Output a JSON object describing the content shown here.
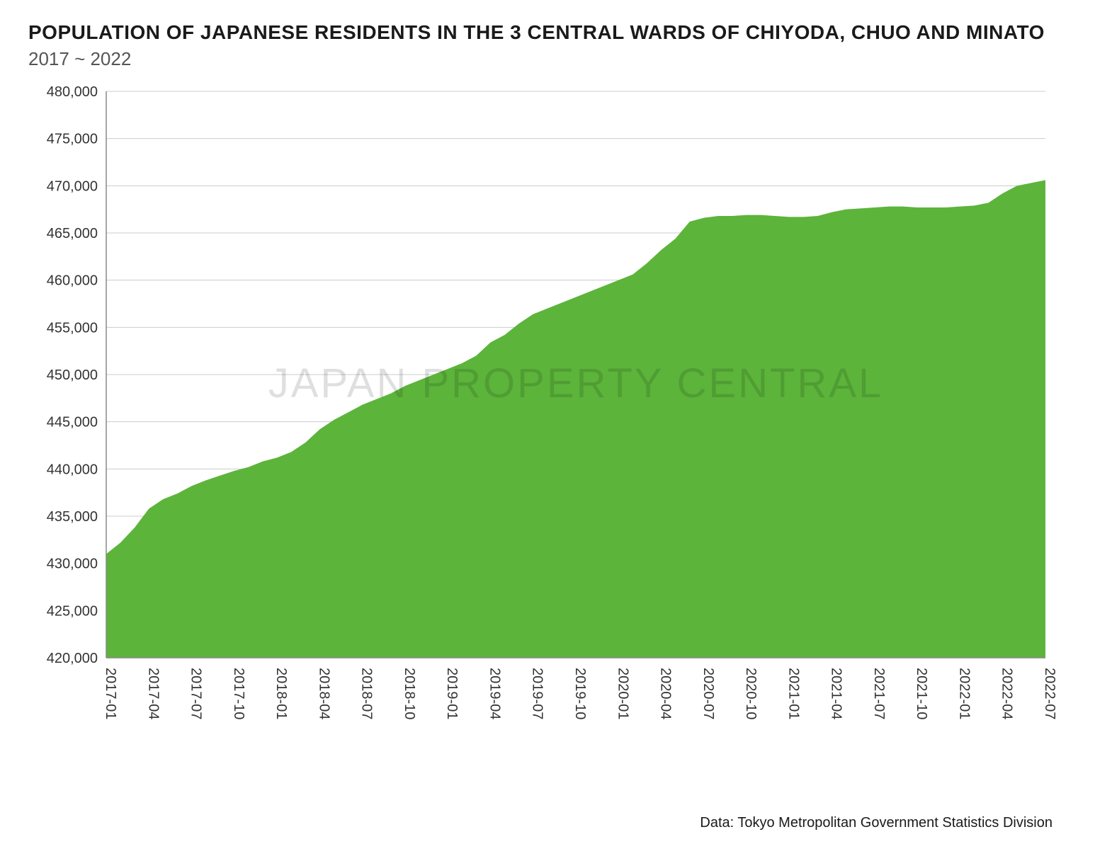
{
  "header": {
    "title": "POPULATION OF JAPANESE RESIDENTS IN THE 3 CENTRAL WARDS OF CHIYODA, CHUO AND MINATO",
    "subtitle": "2017 ~ 2022"
  },
  "chart": {
    "type": "area",
    "watermark": "JAPAN PROPERTY CENTRAL",
    "background_color": "#ffffff",
    "grid_color": "#cccccc",
    "axis_color": "#888888",
    "fill_color": "#5cb43b",
    "title_fontsize": 28,
    "subtitle_fontsize": 26,
    "axis_label_fontsize": 20,
    "watermark_fontsize": 58,
    "watermark_opacity": 0.12,
    "ylim": [
      420000,
      480000
    ],
    "ytick_step": 5000,
    "yticks": [
      {
        "value": 420000,
        "label": "420,000"
      },
      {
        "value": 425000,
        "label": "425,000"
      },
      {
        "value": 430000,
        "label": "430,000"
      },
      {
        "value": 435000,
        "label": "435,000"
      },
      {
        "value": 440000,
        "label": "440,000"
      },
      {
        "value": 445000,
        "label": "445,000"
      },
      {
        "value": 450000,
        "label": "450,000"
      },
      {
        "value": 455000,
        "label": "455,000"
      },
      {
        "value": 460000,
        "label": "460,000"
      },
      {
        "value": 465000,
        "label": "465,000"
      },
      {
        "value": 470000,
        "label": "470,000"
      },
      {
        "value": 475000,
        "label": "475,000"
      },
      {
        "value": 480000,
        "label": "480,000"
      }
    ],
    "xticks": [
      "2017-01",
      "2017-04",
      "2017-07",
      "2017-10",
      "2018-01",
      "2018-04",
      "2018-07",
      "2018-10",
      "2019-01",
      "2019-04",
      "2019-07",
      "2019-10",
      "2020-01",
      "2020-04",
      "2020-07",
      "2020-10",
      "2021-01",
      "2021-04",
      "2021-07",
      "2021-10",
      "2022-01",
      "2022-04",
      "2022-07"
    ],
    "xtick_step_months": 3,
    "series": {
      "x": [
        "2017-01",
        "2017-02",
        "2017-03",
        "2017-04",
        "2017-05",
        "2017-06",
        "2017-07",
        "2017-08",
        "2017-09",
        "2017-10",
        "2017-11",
        "2017-12",
        "2018-01",
        "2018-02",
        "2018-03",
        "2018-04",
        "2018-05",
        "2018-06",
        "2018-07",
        "2018-08",
        "2018-09",
        "2018-10",
        "2018-11",
        "2018-12",
        "2019-01",
        "2019-02",
        "2019-03",
        "2019-04",
        "2019-05",
        "2019-06",
        "2019-07",
        "2019-08",
        "2019-09",
        "2019-10",
        "2019-11",
        "2019-12",
        "2020-01",
        "2020-02",
        "2020-03",
        "2020-04",
        "2020-05",
        "2020-06",
        "2020-07",
        "2020-08",
        "2020-09",
        "2020-10",
        "2020-11",
        "2020-12",
        "2021-01",
        "2021-02",
        "2021-03",
        "2021-04",
        "2021-05",
        "2021-06",
        "2021-07",
        "2021-08",
        "2021-09",
        "2021-10",
        "2021-11",
        "2021-12",
        "2022-01",
        "2022-02",
        "2022-03",
        "2022-04",
        "2022-05",
        "2022-06",
        "2022-07"
      ],
      "y": [
        431000,
        432200,
        433800,
        435800,
        436800,
        437400,
        438200,
        438800,
        439300,
        439800,
        440200,
        440800,
        441200,
        441800,
        442800,
        444200,
        445200,
        446000,
        446800,
        447400,
        448000,
        448800,
        449400,
        450000,
        450600,
        451200,
        452000,
        453400,
        454200,
        455400,
        456400,
        457000,
        457600,
        458200,
        458800,
        459400,
        460000,
        460600,
        461800,
        463200,
        464400,
        466200,
        466600,
        466800,
        466800,
        466900,
        466900,
        466800,
        466700,
        466700,
        466800,
        467200,
        467500,
        467600,
        467700,
        467800,
        467800,
        467700,
        467700,
        467700,
        467800,
        467900,
        468200,
        469200,
        470000,
        470300,
        470600
      ]
    }
  },
  "footer": {
    "attribution": "Data: Tokyo Metropolitan Government Statistics Division"
  }
}
